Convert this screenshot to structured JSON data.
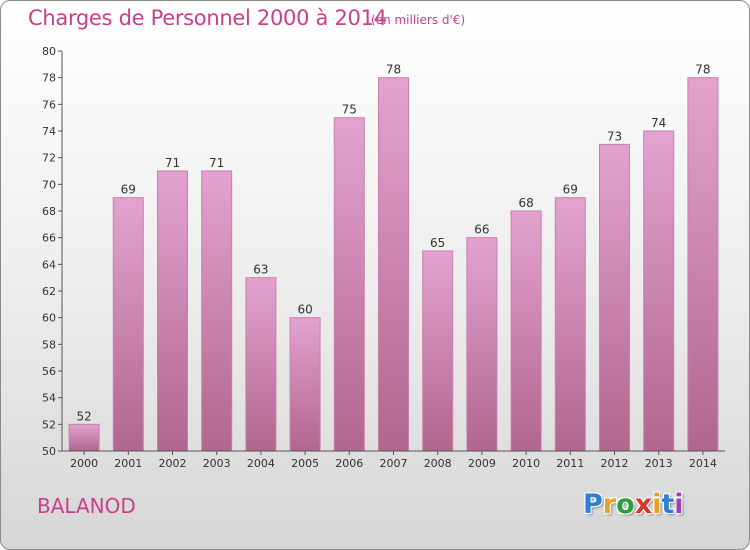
{
  "title": "Charges de Personnel 2000 à 2014",
  "subtitle": "(en milliers d'€)",
  "commune": "BALANOD",
  "logo": {
    "letters": [
      "P",
      "r",
      "o",
      "x",
      "i",
      "t",
      "i"
    ],
    "colors": [
      "#2f7fd0",
      "#e8a020",
      "#2f9d3c",
      "#d43a2a",
      "#e8a020",
      "#2f7fd0",
      "#9a3fb0"
    ]
  },
  "colors": {
    "bar_top": "#e3a3cf",
    "bar_bottom": "#b0668f",
    "bar_border": "#c97fab",
    "title": "#c8408a"
  },
  "chart_data": {
    "type": "bar",
    "title": "Charges de Personnel 2000 à 2014",
    "subtitle": "(en milliers d'€)",
    "categories": [
      "2000",
      "2001",
      "2002",
      "2003",
      "2004",
      "2005",
      "2006",
      "2007",
      "2008",
      "2009",
      "2010",
      "2011",
      "2012",
      "2013",
      "2014"
    ],
    "values": [
      52,
      69,
      71,
      71,
      63,
      60,
      75,
      78,
      65,
      66,
      68,
      69,
      73,
      74,
      78
    ],
    "ylim": [
      50,
      80
    ],
    "yticks": [
      50,
      52,
      54,
      56,
      58,
      60,
      62,
      64,
      66,
      68,
      70,
      72,
      74,
      76,
      78,
      80
    ],
    "grid": false,
    "legend": "none"
  }
}
